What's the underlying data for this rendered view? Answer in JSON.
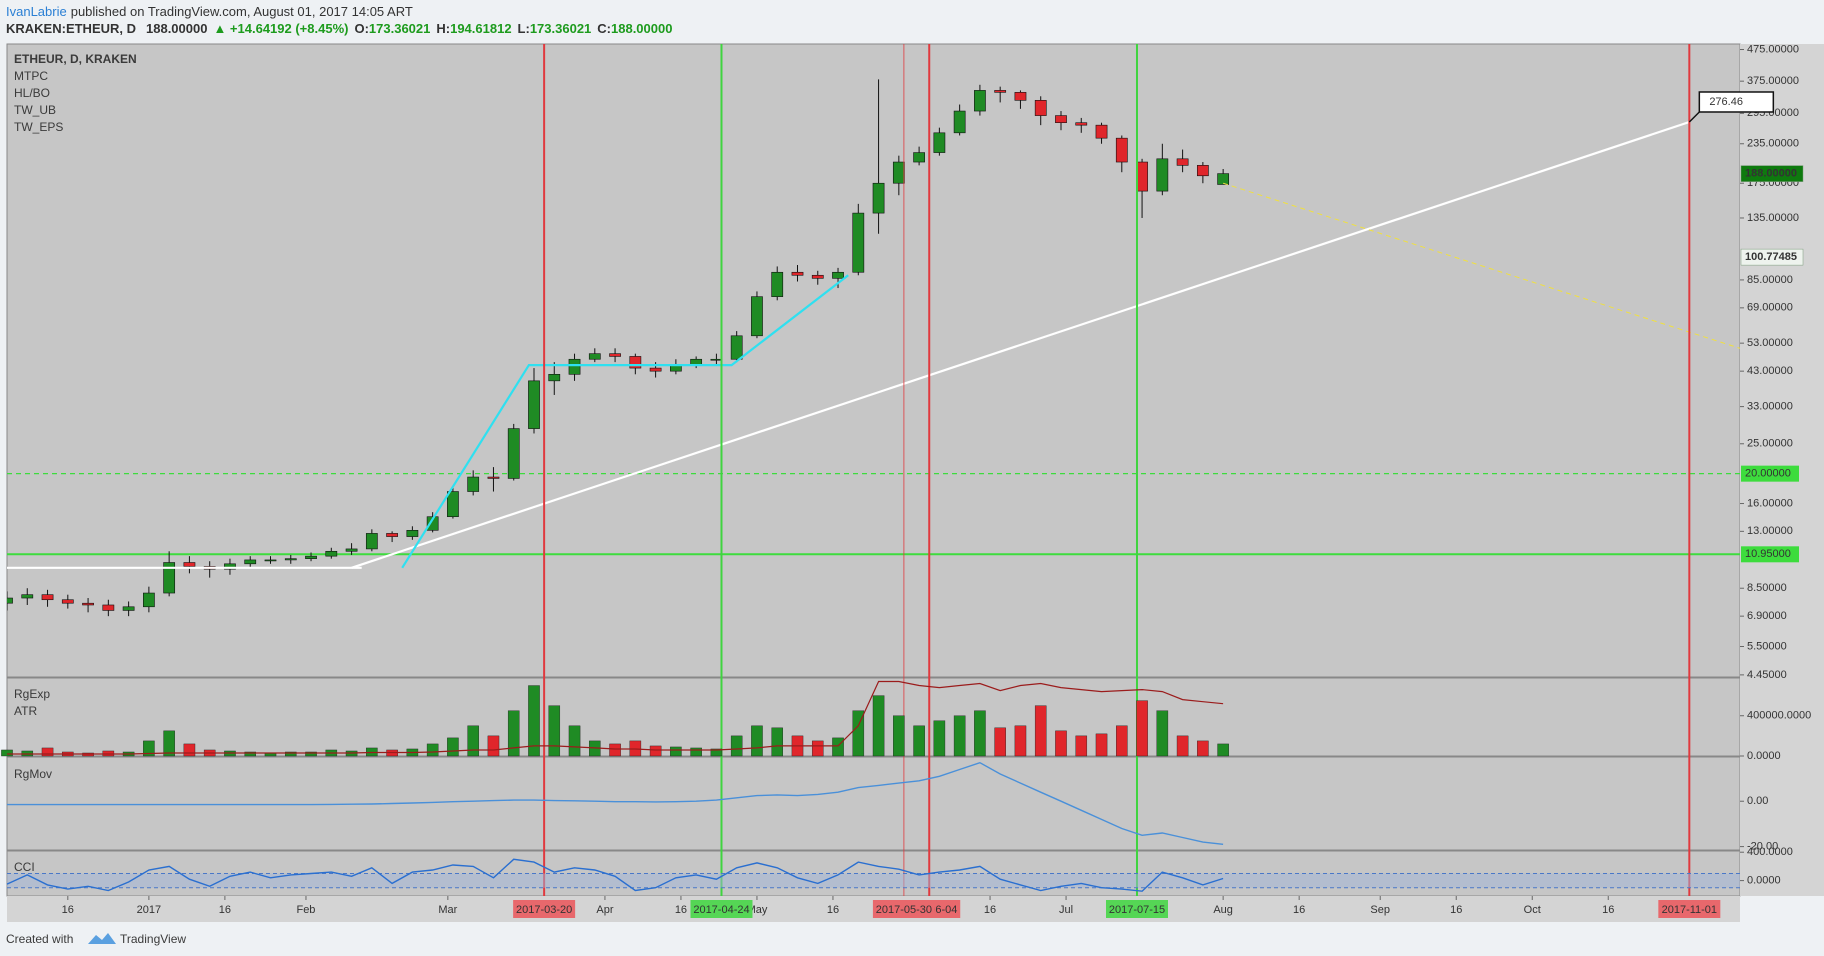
{
  "header": {
    "author": "IvanLabrie",
    "published": "published on TradingView.com, August 01, 2017 14:05 ART",
    "symbol": "KRAKEN:ETHEUR, D",
    "price": "188.00000",
    "change": "▲ +14.64192 (+8.45%)",
    "open_label": "O:",
    "open": "173.36021",
    "high_label": "H:",
    "high": "194.61812",
    "low_label": "L:",
    "low": "173.36021",
    "close_label": "C:",
    "close": "188.00000"
  },
  "footer": {
    "created": "Created with",
    "brand": "TradingView"
  },
  "chart_data": [
    {
      "type": "candlestick",
      "title": "ETHEUR, D, KRAKEN",
      "indicators": [
        "MTPC",
        "HL/BO",
        "TW_UB",
        "TW_EPS"
      ],
      "log_scale": true,
      "up_color": "#1f8b24",
      "down_color": "#e0262b",
      "x": [
        "2016-12-04",
        "2016-12-08",
        "2016-12-12",
        "2016-12-16",
        "2016-12-20",
        "2016-12-24",
        "2016-12-28",
        "2017-01-01",
        "2017-01-05",
        "2017-01-09",
        "2017-01-13",
        "2017-01-17",
        "2017-01-21",
        "2017-01-25",
        "2017-01-29",
        "2017-02-02",
        "2017-02-06",
        "2017-02-10",
        "2017-02-14",
        "2017-02-18",
        "2017-02-22",
        "2017-02-26",
        "2017-03-02",
        "2017-03-06",
        "2017-03-10",
        "2017-03-14",
        "2017-03-18",
        "2017-03-22",
        "2017-03-26",
        "2017-03-30",
        "2017-04-03",
        "2017-04-07",
        "2017-04-11",
        "2017-04-15",
        "2017-04-19",
        "2017-04-23",
        "2017-04-27",
        "2017-05-01",
        "2017-05-05",
        "2017-05-09",
        "2017-05-13",
        "2017-05-17",
        "2017-05-21",
        "2017-05-25",
        "2017-05-29",
        "2017-06-02",
        "2017-06-06",
        "2017-06-10",
        "2017-06-14",
        "2017-06-18",
        "2017-06-22",
        "2017-06-26",
        "2017-06-30",
        "2017-07-04",
        "2017-07-08",
        "2017-07-12",
        "2017-07-16",
        "2017-07-20",
        "2017-07-24",
        "2017-07-28",
        "2017-08-01"
      ],
      "open": [
        7.6,
        7.9,
        8.1,
        7.8,
        7.6,
        7.5,
        7.2,
        7.4,
        8.2,
        10.3,
        10.0,
        9.8,
        10.2,
        10.5,
        10.5,
        10.6,
        10.8,
        11.2,
        11.4,
        12.8,
        12.5,
        13.1,
        14.5,
        17.5,
        19.5,
        19.3,
        28,
        40,
        42,
        47,
        49,
        48,
        44,
        43,
        45,
        47,
        47,
        56,
        75,
        90,
        88,
        86,
        90,
        140,
        175,
        205,
        220,
        255,
        300,
        350,
        345,
        325,
        290,
        275,
        270,
        245,
        205,
        165,
        210,
        200,
        173.36021
      ],
      "high": [
        8.3,
        8.5,
        8.4,
        8.1,
        7.9,
        7.8,
        7.7,
        8.6,
        11.2,
        10.8,
        10.4,
        10.6,
        10.8,
        10.8,
        10.9,
        11.1,
        11.5,
        11.9,
        13.2,
        13.0,
        13.5,
        15.0,
        18.0,
        20.5,
        21.0,
        29,
        44,
        46,
        49,
        51,
        51,
        49,
        46,
        47,
        48,
        49,
        58,
        78,
        94,
        95,
        91,
        93,
        150,
        380,
        215,
        230,
        265,
        315,
        365,
        360,
        350,
        335,
        300,
        285,
        275,
        250,
        210,
        235,
        225,
        205,
        194.61812
      ],
      "low": [
        7.2,
        7.5,
        7.4,
        7.3,
        7.1,
        6.9,
        6.9,
        7.1,
        8.0,
        9.5,
        9.2,
        9.4,
        9.9,
        10.2,
        10.2,
        10.4,
        10.6,
        10.9,
        11.2,
        12.0,
        12.2,
        12.9,
        14.3,
        17.0,
        17.5,
        19.0,
        27,
        36,
        40,
        46,
        46,
        42,
        41,
        42,
        44,
        45,
        46,
        55,
        73,
        84,
        82,
        80,
        88,
        120,
        160,
        200,
        215,
        250,
        290,
        320,
        305,
        270,
        260,
        255,
        235,
        190,
        135,
        160,
        190,
        175,
        173.36021
      ],
      "close": [
        7.9,
        8.1,
        7.8,
        7.6,
        7.5,
        7.2,
        7.4,
        8.2,
        10.3,
        10.0,
        9.8,
        10.2,
        10.5,
        10.5,
        10.6,
        10.8,
        11.2,
        11.4,
        12.8,
        12.5,
        13.1,
        14.5,
        17.5,
        19.5,
        19.3,
        28,
        40,
        42,
        47,
        49,
        48,
        44,
        43,
        45,
        47,
        47,
        56,
        75,
        90,
        88,
        86,
        90,
        140,
        175,
        205,
        220,
        255,
        300,
        350,
        345,
        325,
        290,
        275,
        270,
        245,
        205,
        165,
        210,
        200,
        185,
        188
      ],
      "xlim": [
        "2016-12-04",
        "2017-11-11"
      ],
      "xticks": [
        {
          "value": "2016-12-16",
          "label": "16"
        },
        {
          "value": "2017-01-01",
          "label": "2017"
        },
        {
          "value": "2017-01-16",
          "label": "16"
        },
        {
          "value": "2017-02-01",
          "label": "Feb"
        },
        {
          "value": "2017-03-01",
          "label": "Mar"
        },
        {
          "value": "2017-04-01",
          "label": "Apr"
        },
        {
          "value": "2017-04-16",
          "label": "16"
        },
        {
          "value": "2017-05-01",
          "label": "May"
        },
        {
          "value": "2017-05-16",
          "label": "16"
        },
        {
          "value": "2017-06-16",
          "label": "16"
        },
        {
          "value": "2017-07-01",
          "label": "Jul"
        },
        {
          "value": "2017-08-01",
          "label": "Aug"
        },
        {
          "value": "2017-08-16",
          "label": "16"
        },
        {
          "value": "2017-09-01",
          "label": "Sep"
        },
        {
          "value": "2017-09-16",
          "label": "16"
        },
        {
          "value": "2017-10-01",
          "label": "Oct"
        },
        {
          "value": "2017-10-16",
          "label": "16"
        }
      ],
      "ylim": [
        4.38,
        495
      ],
      "yticks": [
        {
          "value": 475,
          "label": "475.00000"
        },
        {
          "value": 375,
          "label": "375.00000"
        },
        {
          "value": 295,
          "label": "295.00000"
        },
        {
          "value": 235,
          "label": "235.00000"
        },
        {
          "value": 175,
          "label": "175.00000"
        },
        {
          "value": 135,
          "label": "135.00000"
        },
        {
          "value": 85,
          "label": "85.00000"
        },
        {
          "value": 69,
          "label": "69.00000"
        },
        {
          "value": 53,
          "label": "53.00000"
        },
        {
          "value": 43,
          "label": "43.00000"
        },
        {
          "value": 33,
          "label": "33.00000"
        },
        {
          "value": 25,
          "label": "25.00000"
        },
        {
          "value": 16,
          "label": "16.00000"
        },
        {
          "value": 13,
          "label": "13.00000"
        },
        {
          "value": 8.5,
          "label": "8.50000"
        },
        {
          "value": 6.9,
          "label": "6.90000"
        },
        {
          "value": 5.5,
          "label": "5.50000"
        },
        {
          "value": 4.45,
          "label": "4.45000"
        }
      ],
      "hlines": [
        {
          "value": 20,
          "label": "20.00000",
          "color": "#3ddc3d",
          "style": "dashed"
        },
        {
          "value": 10.95,
          "label": "10.95000",
          "color": "#3ddc3d",
          "style": "solid"
        }
      ],
      "markers": [
        {
          "value": 100.77485,
          "label": "100.77485",
          "color": "#eef3ee",
          "text_color": "#333333"
        },
        {
          "value": 188,
          "label": "188.00000",
          "color": "#0e7a0e",
          "text_color": "#ffffff"
        }
      ],
      "vlines": [
        {
          "x": "2017-03-20",
          "color": "#e0393e",
          "style": "solid"
        },
        {
          "x": "2017-04-24",
          "color": "#3fd43f",
          "style": "solid"
        },
        {
          "x": "2017-05-30",
          "color": "#e0393e",
          "style": "thin"
        },
        {
          "x": "2017-06-04",
          "color": "#e0393e",
          "style": "solid"
        },
        {
          "x": "2017-07-15",
          "color": "#3fd43f",
          "style": "solid"
        },
        {
          "x": "2017-11-01",
          "color": "#e0393e",
          "style": "solid"
        }
      ],
      "trendlines": [
        {
          "color": "#ffffff",
          "style": "solid",
          "points": [
            {
              "x": "2016-12-04",
              "y": 9.9
            },
            {
              "x": "2017-02-12",
              "y": 9.9
            }
          ]
        },
        {
          "color": "#ffffff",
          "style": "solid",
          "points": [
            {
              "x": "2017-02-10",
              "y": 9.9
            },
            {
              "x": "2017-11-01",
              "y": 276.46
            }
          ]
        },
        {
          "color": "#2fe0f0",
          "style": "solid",
          "points": [
            {
              "x": "2017-02-20",
              "y": 9.9
            },
            {
              "x": "2017-03-17",
              "y": 45
            },
            {
              "x": "2017-04-26",
              "y": 45
            },
            {
              "x": "2017-05-19",
              "y": 88
            }
          ]
        },
        {
          "color": "#f0e040",
          "style": "dashed",
          "points": [
            {
              "x": "2017-08-01",
              "y": 175
            },
            {
              "x": "2017-11-11",
              "y": 51
            }
          ]
        }
      ]
    },
    {
      "type": "bar",
      "title": "RgExp",
      "values": [
        60000,
        50000,
        80000,
        40000,
        30000,
        50000,
        40000,
        150000,
        250000,
        120000,
        60000,
        50000,
        40000,
        30000,
        40000,
        40000,
        60000,
        50000,
        80000,
        60000,
        70000,
        120000,
        180000,
        300000,
        200000,
        450000,
        700000,
        500000,
        300000,
        150000,
        120000,
        150000,
        100000,
        90000,
        80000,
        70000,
        200000,
        300000,
        280000,
        200000,
        150000,
        180000,
        450000,
        600000,
        400000,
        300000,
        350000,
        400000,
        450000,
        280000,
        300000,
        500000,
        250000,
        200000,
        220000,
        300000,
        550000,
        450000,
        200000,
        150000,
        120000
      ],
      "line": {
        "name": "ATR",
        "color": "#9b1c1c",
        "values": [
          20000,
          20000,
          20000,
          20000,
          20000,
          20000,
          20000,
          25000,
          30000,
          30000,
          30000,
          30000,
          30000,
          30000,
          30000,
          30000,
          30000,
          30000,
          35000,
          35000,
          35000,
          40000,
          50000,
          60000,
          60000,
          80000,
          100000,
          100000,
          90000,
          80000,
          70000,
          70000,
          60000,
          60000,
          60000,
          60000,
          70000,
          80000,
          100000,
          100000,
          100000,
          100000,
          300000,
          740000,
          740000,
          700000,
          680000,
          700000,
          720000,
          650000,
          700000,
          720000,
          680000,
          660000,
          640000,
          650000,
          660000,
          640000,
          560000,
          540000,
          520000
        ]
      },
      "ylim": [
        0,
        775000
      ],
      "yticks": [
        {
          "value": 400000,
          "label": "400000.0000"
        },
        {
          "value": 0,
          "label": "0.0000"
        }
      ]
    },
    {
      "type": "line",
      "title": "RgMov",
      "color": "#4a90d9",
      "values": [
        -1.5,
        -1.5,
        -1.5,
        -1.5,
        -1.5,
        -1.5,
        -1.5,
        -1.5,
        -1.5,
        -1.5,
        -1.5,
        -1.5,
        -1.5,
        -1.5,
        -1.5,
        -1.5,
        -1.4,
        -1.3,
        -1.2,
        -1,
        -0.8,
        -0.5,
        -0.2,
        0,
        0.3,
        0.5,
        0.5,
        0.3,
        0.2,
        0,
        -0.2,
        -0.2,
        -0.3,
        -0.2,
        0,
        0.5,
        1.5,
        2.5,
        2.8,
        2.5,
        3,
        4,
        6,
        7,
        8,
        9,
        11,
        14,
        17,
        12,
        8,
        4,
        0,
        -4,
        -8,
        -12,
        -15,
        -14,
        -16,
        -18,
        -19
      ],
      "ylim": [
        -21.5,
        19.5
      ],
      "yticks": [
        {
          "value": 0,
          "label": "0.00"
        },
        {
          "value": -20,
          "label": "-20.00"
        }
      ]
    },
    {
      "type": "line",
      "title": "CCI",
      "color": "#2a6fd0",
      "band": [
        -100,
        100
      ],
      "values": [
        -50,
        80,
        -60,
        -120,
        -80,
        -140,
        -20,
        150,
        200,
        20,
        -80,
        60,
        120,
        40,
        80,
        100,
        120,
        60,
        180,
        -40,
        120,
        150,
        220,
        200,
        40,
        300,
        260,
        120,
        180,
        150,
        60,
        -140,
        -100,
        40,
        80,
        20,
        180,
        250,
        180,
        40,
        -40,
        80,
        260,
        200,
        160,
        80,
        120,
        150,
        200,
        20,
        -60,
        -140,
        -80,
        -40,
        -100,
        -120,
        -150,
        120,
        40,
        -60,
        30
      ],
      "ylim": [
        -217,
        417
      ],
      "yticks": [
        {
          "value": 400,
          "label": "400.0000"
        },
        {
          "value": 0,
          "label": "0.0000"
        }
      ]
    }
  ]
}
